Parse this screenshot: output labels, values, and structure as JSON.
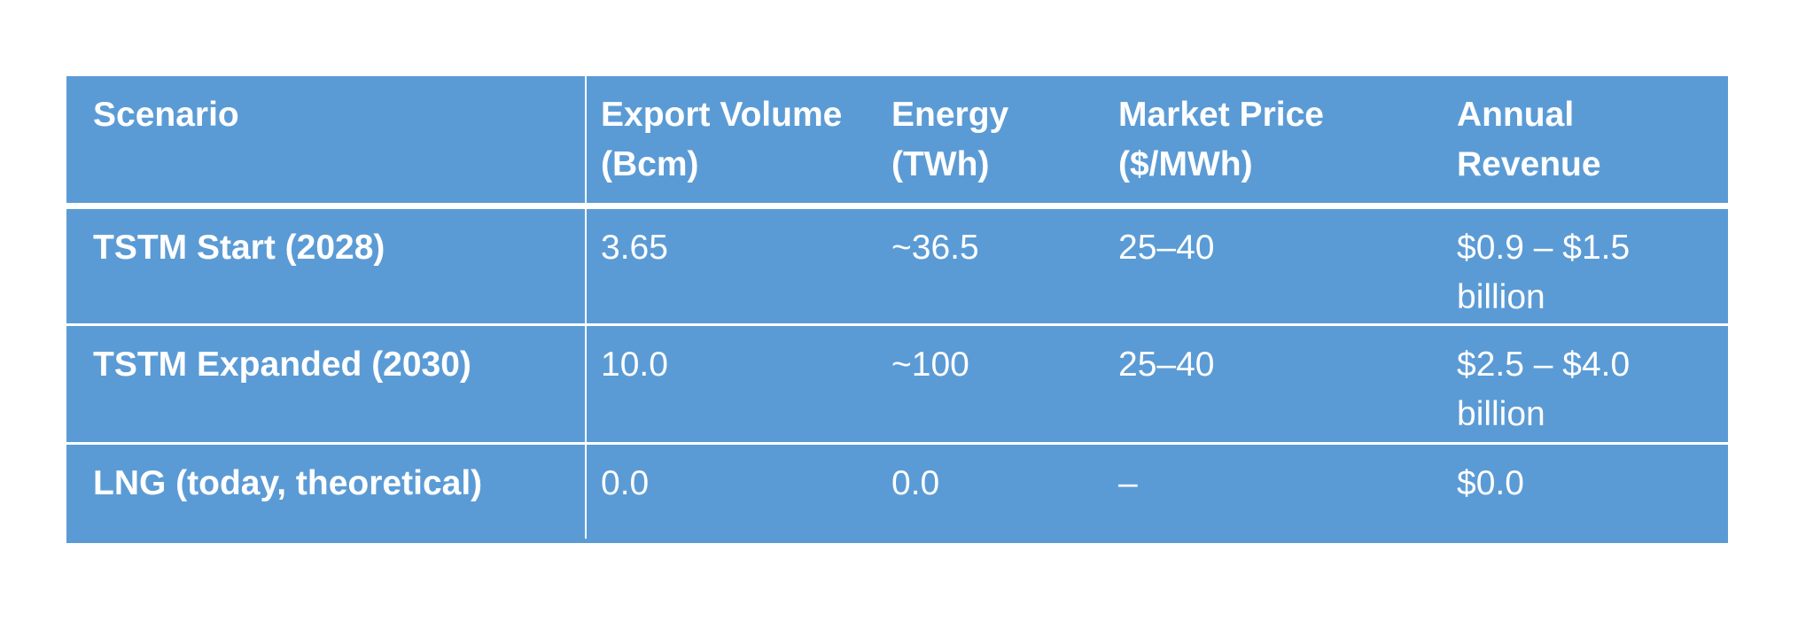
{
  "table": {
    "headers": [
      "Scenario",
      "Export Volume (Bcm)",
      "Energy (TWh)",
      "Market Price ($/MWh)",
      "Annual Revenue"
    ],
    "rows": [
      [
        "TSTM Start (2028)",
        "3.65",
        "~36.5",
        "25–40",
        "$0.9 – $1.5 billion"
      ],
      [
        "TSTM Expanded (2030)",
        "10.0",
        "~100",
        "25–40",
        "$2.5 – $4.0 billion"
      ],
      [
        "LNG (today, theoretical)",
        "0.0",
        "0.0",
        "–",
        "$0.0"
      ]
    ]
  },
  "colors": {
    "table_background": "#5b9bd5",
    "text": "#ffffff"
  }
}
